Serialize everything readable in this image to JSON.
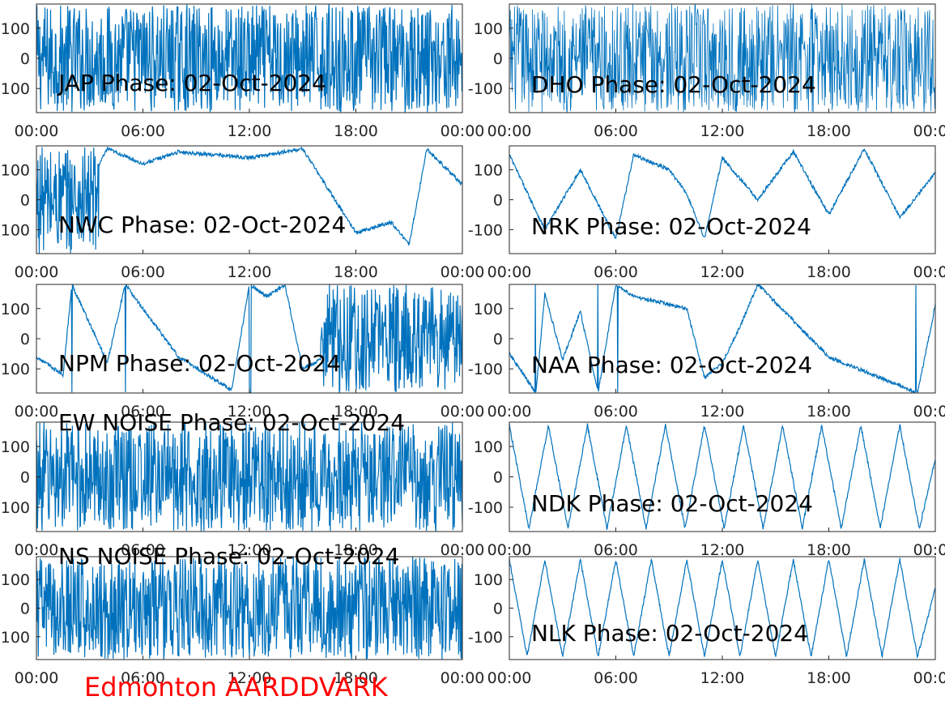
{
  "figure": {
    "footer_text": "Edmonton AARDDVARK",
    "footer_color": "#ff0000",
    "line_color": "#0072bd",
    "axis_color": "#262626",
    "y_ticks": [
      "100",
      "0",
      "-100"
    ],
    "x_ticks": [
      "00:00",
      "06:00",
      "12:00",
      "18:00",
      "00:00"
    ]
  },
  "chart_data": [
    {
      "type": "line",
      "title": "JAP Phase: 02-Oct-2024",
      "ylim": [
        -180,
        180
      ],
      "xlim": [
        "00:00",
        "24:00"
      ],
      "pattern": "noise",
      "x": [
        0,
        2,
        4,
        6,
        8,
        10,
        12,
        14,
        16,
        18,
        20,
        22,
        24
      ],
      "y": [
        0,
        0,
        0,
        0,
        0,
        0,
        0,
        0,
        0,
        0,
        0,
        0,
        0
      ]
    },
    {
      "type": "line",
      "title": "DHO Phase: 02-Oct-2024",
      "ylim": [
        -180,
        180
      ],
      "xlim": [
        "00:00",
        "24:00"
      ],
      "pattern": "dense",
      "x": [
        0,
        2,
        4,
        6,
        8,
        10,
        12,
        14,
        16,
        18,
        20,
        22,
        24
      ],
      "y": [
        0,
        0,
        0,
        0,
        0,
        0,
        0,
        0,
        0,
        0,
        0,
        0,
        0
      ]
    },
    {
      "type": "line",
      "title": "NWC Phase: 02-Oct-2024",
      "ylim": [
        -180,
        180
      ],
      "xlim": [
        "00:00",
        "24:00"
      ],
      "pattern": "noise-then-sawtooth",
      "x": [
        0,
        3,
        4,
        6,
        8,
        10,
        12,
        15,
        18,
        20,
        21,
        22,
        24
      ],
      "y": [
        0,
        60,
        170,
        120,
        160,
        150,
        140,
        170,
        -110,
        -75,
        -150,
        170,
        50
      ]
    },
    {
      "type": "line",
      "title": "NRK Phase: 02-Oct-2024",
      "ylim": [
        -180,
        180
      ],
      "xlim": [
        "00:00",
        "24:00"
      ],
      "pattern": "sawtooth",
      "x": [
        0,
        2,
        4,
        6,
        7,
        9,
        10,
        11,
        12,
        14,
        16,
        18,
        20,
        22,
        24
      ],
      "y": [
        150,
        -100,
        100,
        -130,
        150,
        100,
        20,
        -130,
        140,
        0,
        160,
        -50,
        170,
        -60,
        90
      ]
    },
    {
      "type": "line",
      "title": "NPM Phase: 02-Oct-2024",
      "ylim": [
        -180,
        180
      ],
      "xlim": [
        "00:00",
        "24:00"
      ],
      "pattern": "sawtooth-then-noise",
      "x": [
        0,
        1.5,
        2,
        4,
        5,
        8,
        11,
        12,
        13,
        14,
        15,
        16,
        17,
        20,
        24
      ],
      "y": [
        -60,
        -120,
        180,
        -80,
        180,
        -60,
        -170,
        180,
        140,
        180,
        -100,
        -70,
        0,
        0,
        0
      ]
    },
    {
      "type": "line",
      "title": "NAA Phase: 02-Oct-2024",
      "ylim": [
        -180,
        180
      ],
      "xlim": [
        "00:00",
        "24:00"
      ],
      "pattern": "slow-drift",
      "x": [
        0,
        1.5,
        2,
        3,
        4,
        5,
        6,
        7,
        10,
        11,
        12,
        13,
        14,
        18,
        23,
        24
      ],
      "y": [
        -50,
        -180,
        150,
        -70,
        90,
        -180,
        180,
        140,
        100,
        -130,
        -80,
        40,
        180,
        -60,
        -180,
        110
      ]
    },
    {
      "type": "line",
      "title": "EW NOISE Phase: 02-Oct-2024",
      "ylim": [
        -180,
        180
      ],
      "xlim": [
        "00:00",
        "24:00"
      ],
      "pattern": "noise",
      "x": [
        0,
        2,
        4,
        6,
        8,
        10,
        12,
        14,
        16,
        18,
        20,
        22,
        24
      ],
      "y": [
        0,
        0,
        0,
        0,
        0,
        0,
        0,
        0,
        0,
        0,
        0,
        0,
        0
      ]
    },
    {
      "type": "line",
      "title": "NDK Phase: 02-Oct-2024",
      "ylim": [
        -180,
        180
      ],
      "xlim": [
        "00:00",
        "24:00"
      ],
      "pattern": "sawtooth",
      "x": [
        0,
        1.1,
        2.2,
        3.3,
        4.4,
        5.5,
        6.6,
        7.7,
        8.8,
        9.9,
        11,
        12.1,
        13.2,
        14.3,
        15.4,
        16.5,
        17.6,
        18.7,
        19.8,
        20.9,
        22,
        23.1,
        24
      ],
      "y": [
        170,
        -170,
        170,
        -170,
        170,
        -170,
        170,
        -170,
        170,
        -170,
        170,
        -170,
        170,
        -170,
        170,
        -170,
        170,
        -170,
        170,
        -170,
        170,
        -170,
        60
      ]
    },
    {
      "type": "line",
      "title": "NS NOISE Phase: 02-Oct-2024",
      "ylim": [
        -180,
        180
      ],
      "xlim": [
        "00:00",
        "24:00"
      ],
      "pattern": "noise",
      "x": [
        0,
        2,
        4,
        6,
        8,
        10,
        12,
        14,
        16,
        18,
        20,
        22,
        24
      ],
      "y": [
        0,
        0,
        0,
        0,
        0,
        0,
        0,
        0,
        0,
        0,
        0,
        0,
        0
      ]
    },
    {
      "type": "line",
      "title": "NLK Phase: 02-Oct-2024",
      "ylim": [
        -180,
        180
      ],
      "xlim": [
        "00:00",
        "24:00"
      ],
      "pattern": "sawtooth",
      "x": [
        0,
        1,
        2,
        3,
        4,
        5,
        6,
        7,
        8,
        9,
        10,
        11,
        12,
        13,
        14,
        15,
        16,
        17,
        18,
        19,
        20,
        21,
        22,
        23,
        24
      ],
      "y": [
        170,
        -170,
        170,
        -170,
        170,
        -170,
        170,
        -170,
        170,
        -170,
        170,
        -170,
        170,
        -170,
        170,
        -170,
        170,
        -170,
        170,
        -170,
        170,
        -170,
        170,
        -170,
        70
      ]
    }
  ]
}
